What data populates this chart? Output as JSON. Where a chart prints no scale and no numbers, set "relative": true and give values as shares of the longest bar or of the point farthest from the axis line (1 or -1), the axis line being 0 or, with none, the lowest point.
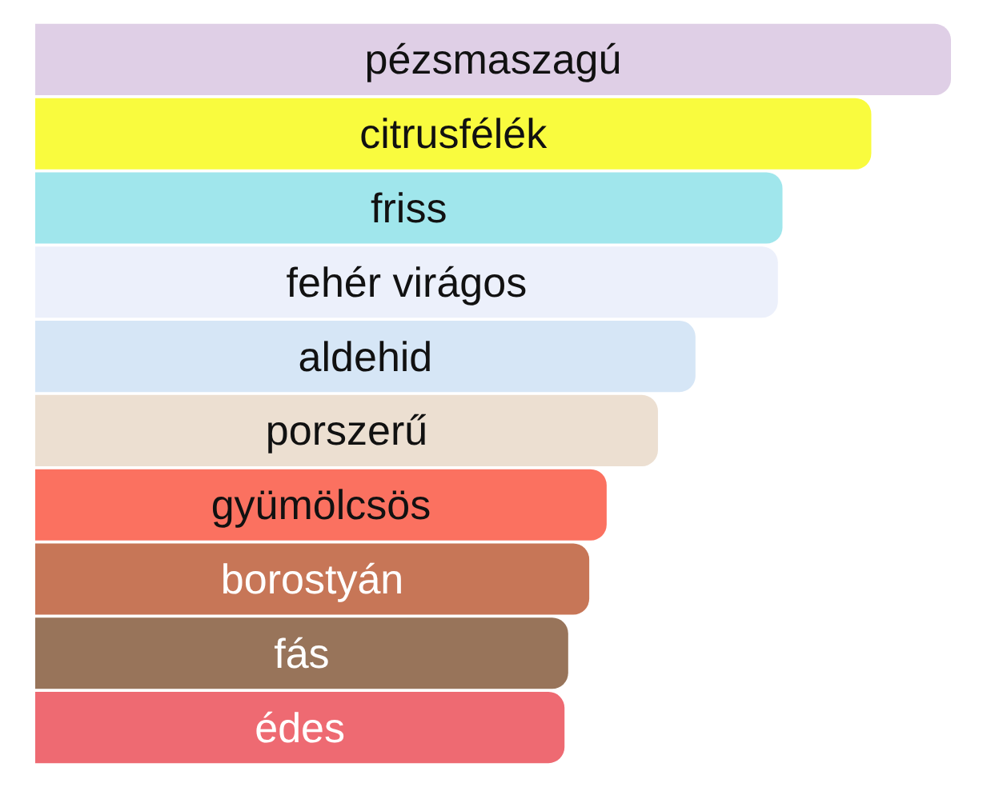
{
  "chart_data": {
    "type": "bar",
    "orientation": "horizontal",
    "relative": true,
    "categories": [
      "pézsmaszagú",
      "citrusfélék",
      "friss",
      "fehér virágos",
      "aldehid",
      "porszerű",
      "gyümölcsös",
      "borostyán",
      "fás",
      "édes"
    ],
    "values": [
      1,
      0.913,
      0.816,
      0.811,
      0.721,
      0.68,
      0.624,
      0.605,
      0.582,
      0.578
    ],
    "colors": [
      "#dfcfe6",
      "#f9fb3e",
      "#a0e6ec",
      "#ecf0fb",
      "#d6e6f6",
      "#ecdfd1",
      "#fb7160",
      "#c77657",
      "#98745a",
      "#ee6a72"
    ]
  }
}
